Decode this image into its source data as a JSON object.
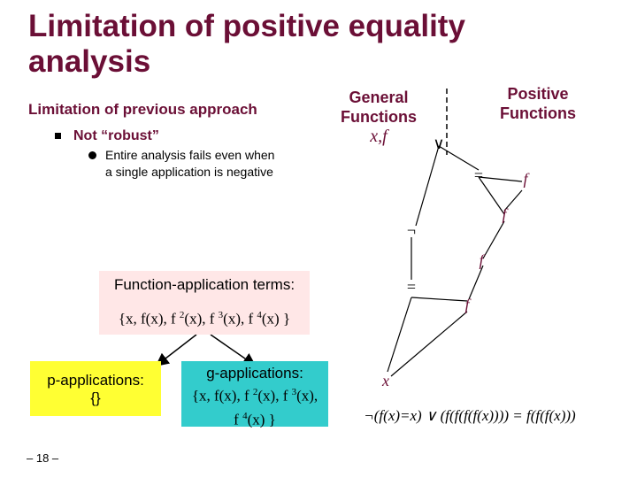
{
  "title": {
    "line1": "Limitation of positive equality",
    "line2": "analysis"
  },
  "left": {
    "heading": "Limitation of previous approach",
    "bullet": "Not “robust”",
    "sub_bullet": "Entire analysis fails even when a single application is negative"
  },
  "headers": {
    "general": "General Functions",
    "general_vars": "x,f",
    "positive": "Positive Functions"
  },
  "diagram": {
    "or_symbol": "∨",
    "eq_symbol": "=",
    "not_symbol": "¬",
    "f_label": "f",
    "x_label": "x",
    "formula": "¬(f(x)=x) ∨ (f(f(f(f(x)))) = f(f(f(x)))"
  },
  "boxes": {
    "function_app": {
      "line1": "Function-application terms:",
      "set_open": "{x, f(x), f ",
      "e1": "2",
      "mid1": "(x), f ",
      "e2": "3",
      "mid2": "(x), f ",
      "e3": "4",
      "set_close": "(x) }"
    },
    "p_apps": {
      "label": "p-applications:",
      "set": "{}"
    },
    "g_apps": {
      "label": "g-applications:",
      "set_open": "{x, f(x), f ",
      "e1": "2",
      "mid1": "(x), f ",
      "e2": "3",
      "mid2": "(x),",
      "line3_open": "f ",
      "e3": "4",
      "line3_close": "(x) }"
    }
  },
  "page_number": "– 18 –",
  "colors": {
    "title": "#6b0f36",
    "pink": "#ffe7e7",
    "yellow": "#ffff33",
    "teal": "#33cccc"
  }
}
